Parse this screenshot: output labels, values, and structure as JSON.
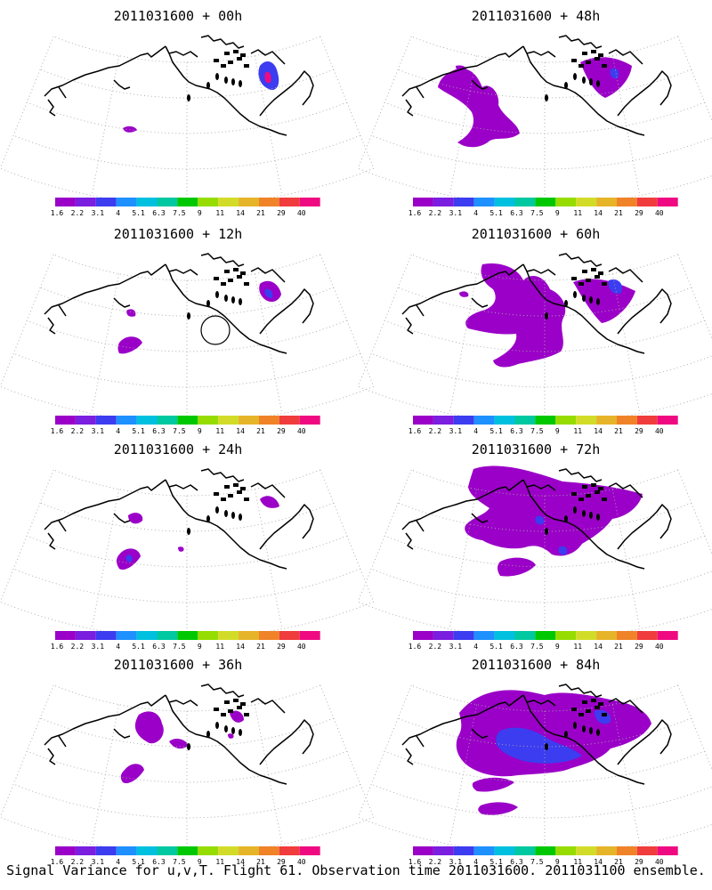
{
  "panels": [
    {
      "title": "2011031600 + 00h",
      "lead_hours": 0
    },
    {
      "title": "2011031600 + 48h",
      "lead_hours": 48
    },
    {
      "title": "2011031600 + 12h",
      "lead_hours": 12
    },
    {
      "title": "2011031600 + 60h",
      "lead_hours": 60
    },
    {
      "title": "2011031600 + 24h",
      "lead_hours": 24
    },
    {
      "title": "2011031600 + 72h",
      "lead_hours": 72
    },
    {
      "title": "2011031600 + 36h",
      "lead_hours": 36
    },
    {
      "title": "2011031600 + 84h",
      "lead_hours": 84
    }
  ],
  "colorbar": {
    "labels": [
      "1.6",
      "2.2",
      "3.1",
      "4",
      "5.1",
      "6.3",
      "7.5",
      "9",
      "11",
      "14",
      "21",
      "29",
      "40"
    ],
    "colors": [
      "#9b00c8",
      "#7a1ee0",
      "#3c3cf0",
      "#1e90ff",
      "#00c0e0",
      "#00c8a0",
      "#00c800",
      "#96dc00",
      "#d2dc28",
      "#e6b428",
      "#f08228",
      "#f03c3c",
      "#f00a82"
    ]
  },
  "map_style": {
    "coastline_color": "#000000",
    "grid_color": "#aaaaaa",
    "signal_color": "#9b00c8",
    "signal_strong_color": "#3c3cf0",
    "peak_color": "#f00a82"
  },
  "caption": "Signal Variance for u,v,T. Flight 61. Observation time 2011031600. 2011031100 ensemble."
}
